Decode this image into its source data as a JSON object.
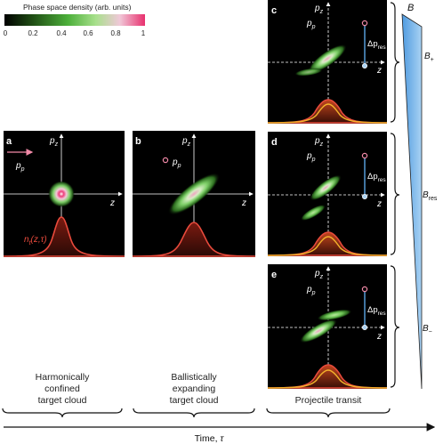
{
  "colorbar": {
    "title": "Phase space density (arb. units)",
    "ticks": [
      "0",
      "0.2",
      "0.4",
      "0.6",
      "0.8",
      "1"
    ],
    "colors": [
      "#000000",
      "#1f4d14",
      "#4caf3a",
      "#a8e08c",
      "#f0c8d8",
      "#e8306e"
    ]
  },
  "panels": {
    "a": {
      "letter": "a",
      "pz": "p",
      "pz_sub": "z",
      "z": "z",
      "pp": "p",
      "pp_sub": "p",
      "density": "n",
      "density_sub": "t",
      "density_arg": "(z,τ)"
    },
    "b": {
      "letter": "b",
      "pz": "p",
      "pz_sub": "z",
      "z": "z",
      "pp": "p",
      "pp_sub": "p"
    },
    "c": {
      "letter": "c",
      "pz": "p",
      "pz_sub": "z",
      "z": "z",
      "pp": "p",
      "pp_sub": "p",
      "dp": "Δp",
      "dp_sub": "res"
    },
    "d": {
      "letter": "d",
      "pz": "p",
      "pz_sub": "z",
      "z": "z",
      "pp": "p",
      "pp_sub": "p",
      "dp": "Δp",
      "dp_sub": "res"
    },
    "e": {
      "letter": "e",
      "pz": "p",
      "pz_sub": "z",
      "z": "z",
      "pp": "p",
      "pp_sub": "p",
      "dp": "Δp",
      "dp_sub": "res"
    }
  },
  "field": {
    "title": "B",
    "levels": [
      {
        "name": "B",
        "sub": "+"
      },
      {
        "name": "B",
        "sub": "res"
      },
      {
        "name": "B",
        "sub": "−"
      }
    ],
    "color": "#5aa7e6"
  },
  "captions": {
    "a": [
      "Harmonically",
      "confined",
      "target cloud"
    ],
    "b": [
      "Ballistically",
      "expanding",
      "target cloud"
    ],
    "c": [
      "Projectile transit"
    ]
  },
  "time_axis": {
    "label": "Time, ",
    "symbol": "τ"
  },
  "colors": {
    "panel_bg": "#000000",
    "axis": "#ffffff",
    "projectile": "#e8306e",
    "density_curve": "#e84a3c",
    "density_curve_alt": "#f3b12b",
    "marker": "#5aa7e6"
  }
}
